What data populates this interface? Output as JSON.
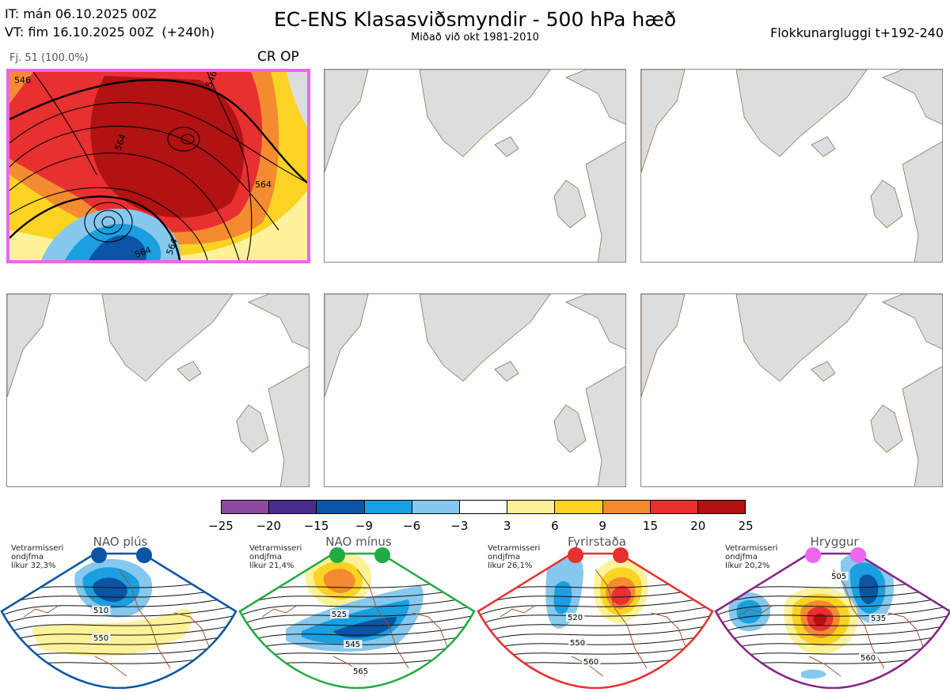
{
  "header": {
    "it_line": "IT: mán 06.10.2025 00Z",
    "vt_line": "VT: fim 16.10.2025 00Z  (+240h)",
    "title": "EC-ENS Klasasviðsmyndir - 500 hPa hæð",
    "subtitle": "Miðað við okt 1981-2010",
    "window": "Flokkunargluggi t+192-240"
  },
  "cluster": {
    "members_label": "Fj. 51 (100.0%)",
    "regime_label": "CR OP",
    "highlight_color": "#ee66ee",
    "contour_labels": [
      "546",
      "564",
      "564",
      "546",
      "564",
      "564"
    ]
  },
  "colorbar": {
    "ticks": [
      "−25",
      "−20",
      "−15",
      "−9",
      "−6",
      "−3",
      "3",
      "6",
      "9",
      "15",
      "20",
      "25"
    ],
    "colors": [
      "#8b4a9e",
      "#4a2e8e",
      "#0a55a3",
      "#1a9fe0",
      "#86c8ee",
      "#ffffff",
      "#fdf29a",
      "#fdd323",
      "#f48b30",
      "#e83030",
      "#b11212"
    ]
  },
  "regimes": [
    {
      "name": "NAO plús",
      "stat_lines": [
        "Vetrarmisseri",
        "ondjfma",
        "líkur 32,3%"
      ],
      "border": "#0a55a3",
      "dot": "#0a55a3",
      "labels": [
        "510",
        "550"
      ]
    },
    {
      "name": "NAO mínus",
      "stat_lines": [
        "Vetrarmisseri",
        "ondjfma",
        "líkur 21,4%"
      ],
      "border": "#22aa44",
      "dot": "#22aa44",
      "labels": [
        "525",
        "545",
        "565"
      ]
    },
    {
      "name": "Fyrirstaða",
      "stat_lines": [
        "Vetrarmisseri",
        "ondjfma",
        "líkur 26,1%"
      ],
      "border": "#e83030",
      "dot": "#e83030",
      "labels": [
        "520",
        "550",
        "560"
      ]
    },
    {
      "name": "Hryggur",
      "stat_lines": [
        "Vetrarmisseri",
        "ondjfma",
        "líkur 20,2%"
      ],
      "border": "#882288",
      "dot": "#ee66ee",
      "labels": [
        "505",
        "535",
        "560"
      ]
    }
  ]
}
